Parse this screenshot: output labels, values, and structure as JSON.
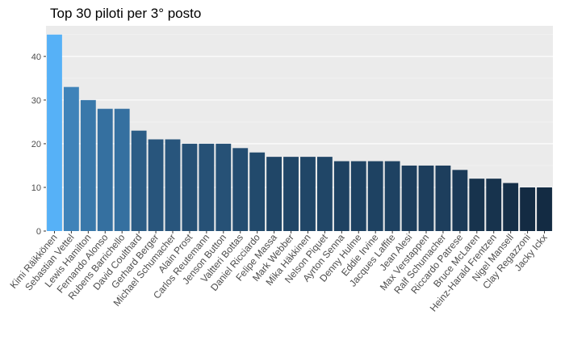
{
  "chart_data": {
    "type": "bar",
    "title": "Top 30 piloti per 3° posto",
    "xlabel": "",
    "ylabel": "",
    "ylim": [
      0,
      47
    ],
    "yticks": [
      0,
      10,
      20,
      30,
      40
    ],
    "grid": true,
    "legend": "none",
    "categories": [
      "Kimi Räikkönen",
      "Sebastian Vettel",
      "Lewis Hamilton",
      "Fernando Alonso",
      "Rubens Barrichello",
      "David Coulthard",
      "Gerhard Berger",
      "Michael Schumacher",
      "Alain Prost",
      "Carlos Reutemann",
      "Jenson Button",
      "Valtteri Bottas",
      "Daniel Ricciardo",
      "Felipe Massa",
      "Mark Webber",
      "Mika Häkkinen",
      "Nelson Piquet",
      "Ayrton Senna",
      "Denny Hulme",
      "Eddie Irvine",
      "Jacques Laffite",
      "Jean Alesi",
      "Max Verstappen",
      "Ralf Schumacher",
      "Riccardo Patrese",
      "Bruce McLaren",
      "Heinz-Harald Frentzen",
      "Nigel Mansell",
      "Clay Regazzoni",
      "Jacky Ickx"
    ],
    "values": [
      45,
      33,
      30,
      28,
      28,
      23,
      21,
      21,
      20,
      20,
      20,
      19,
      18,
      17,
      17,
      17,
      17,
      16,
      16,
      16,
      16,
      15,
      15,
      15,
      14,
      12,
      12,
      11,
      10,
      10
    ],
    "colors": {
      "panel_bg": "#ebebeb",
      "grid_major": "#ffffff",
      "bar_low": "#132b43",
      "bar_high": "#56b1f7",
      "tick_text": "#4d4d4d",
      "tick_mark": "#333333"
    }
  }
}
